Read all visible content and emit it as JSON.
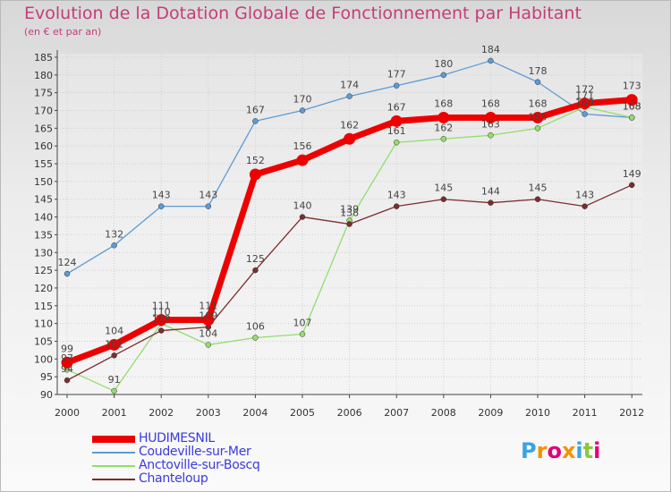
{
  "title": "Evolution de la Dotation Globale de Fonctionnement par Habitant",
  "subtitle": "(en € et par an)",
  "logo": {
    "text": [
      "P",
      "r",
      "o",
      "x",
      "i",
      "t",
      "i"
    ],
    "colors": [
      "#3aa3e3",
      "#f39200",
      "#e0007a",
      "#f39200",
      "#3aa3e3",
      "#8cc63f",
      "#e0007a"
    ]
  },
  "chart_data": {
    "type": "line",
    "title": "Evolution de la Dotation Globale de Fonctionnement par Habitant",
    "subtitle": "(en € et par an)",
    "x": [
      "2000",
      "2001",
      "2002",
      "2003",
      "2004",
      "2005",
      "2006",
      "2007",
      "2008",
      "2009",
      "2010",
      "2011",
      "2012"
    ],
    "ylim": [
      90,
      186
    ],
    "yticks": [
      90,
      95,
      100,
      105,
      110,
      115,
      120,
      125,
      130,
      135,
      140,
      145,
      150,
      155,
      160,
      165,
      170,
      175,
      180,
      185
    ],
    "grid": true,
    "legend_position": "bottom-left",
    "series": [
      {
        "name": "HUDIMESNIL",
        "color": "#ee0000",
        "values": [
          99,
          104,
          111,
          111,
          152,
          156,
          162,
          167,
          168,
          168,
          168,
          172,
          173
        ]
      },
      {
        "name": "Coudeville-sur-Mer",
        "color": "#5d9bd4",
        "values": [
          124,
          132,
          143,
          143,
          167,
          170,
          174,
          177,
          180,
          184,
          178,
          169,
          168
        ]
      },
      {
        "name": "Anctoville-sur-Boscq",
        "color": "#92dd6e",
        "values": [
          97,
          91,
          110,
          104,
          106,
          107,
          139,
          161,
          162,
          163,
          165,
          171,
          168
        ]
      },
      {
        "name": "Chanteloup",
        "color": "#7a2d2d",
        "values": [
          94,
          101,
          108,
          109,
          125,
          140,
          138,
          143,
          145,
          144,
          145,
          143,
          149
        ]
      }
    ]
  }
}
